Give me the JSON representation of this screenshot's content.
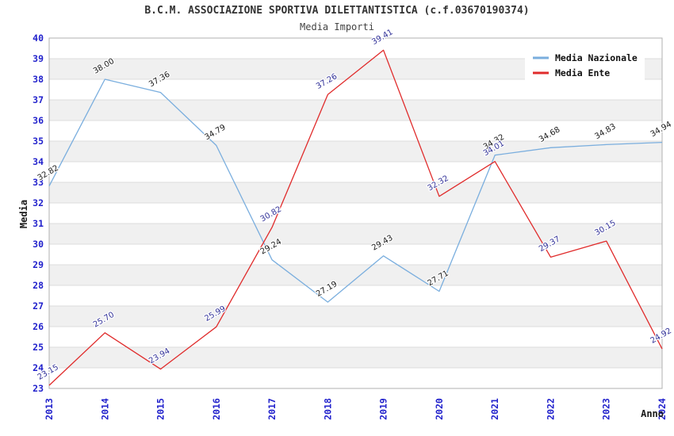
{
  "title": "B.C.M. ASSOCIAZIONE SPORTIVA DILETTANTISTICA (c.f.03670190374)",
  "subtitle": "Media Importi",
  "colors": {
    "tick_label": "#2222cc",
    "band": "#f0f0f0",
    "gridline": "#dcdcdc",
    "plot_border": "#b0b0b0",
    "background": "#ffffff",
    "title": "#333333",
    "axis_title": "#1a1a1a",
    "legend_bg": "#ffffff",
    "legend_text": "#111111",
    "nazionale_line": "#7aaede",
    "ente_line": "#e02b2b",
    "nazionale_label": "#1a1a1a",
    "ente_label": "#333399"
  },
  "chart_data": {
    "type": "line",
    "title": "B.C.M. ASSOCIAZIONE SPORTIVA DILETTANTISTICA (c.f.03670190374)",
    "subtitle": "Media Importi",
    "xlabel": "Anno",
    "ylabel": "Media",
    "x": [
      "2013",
      "2014",
      "2015",
      "2016",
      "2017",
      "2018",
      "2019",
      "2020",
      "2021",
      "2022",
      "2023",
      "2024"
    ],
    "ylim": [
      23,
      40
    ],
    "ytick_step": 1,
    "grid": "horizontal alternating bands with integer gridlines",
    "legend_position": "top-right",
    "point_labels": "each point labeled with value, 2 decimals, rotated",
    "series": [
      {
        "name": "Media Nazionale",
        "color": "#7aaede",
        "label_color": "#1a1a1a",
        "values": [
          32.82,
          38.0,
          37.36,
          34.79,
          29.24,
          27.19,
          29.43,
          27.71,
          34.32,
          34.68,
          34.83,
          34.94
        ]
      },
      {
        "name": "Media Ente",
        "color": "#e02b2b",
        "label_color": "#333399",
        "values": [
          23.15,
          25.7,
          23.94,
          25.99,
          30.82,
          37.26,
          39.41,
          32.32,
          34.01,
          29.37,
          30.15,
          24.92
        ]
      }
    ]
  }
}
